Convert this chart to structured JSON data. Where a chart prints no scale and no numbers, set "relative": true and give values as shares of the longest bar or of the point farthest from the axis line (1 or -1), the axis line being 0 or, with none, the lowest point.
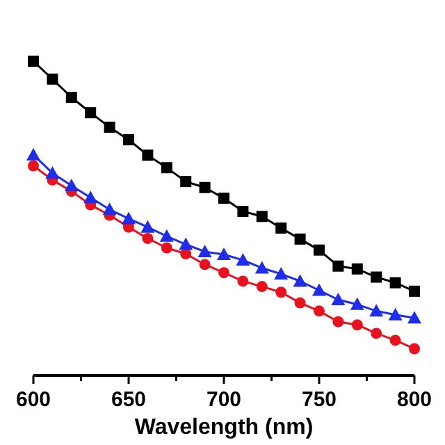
{
  "chart_data": {
    "type": "line",
    "xlabel": "Wavelength (nm)",
    "relative": true,
    "x": [
      600,
      610,
      620,
      630,
      640,
      650,
      660,
      670,
      680,
      690,
      700,
      710,
      720,
      730,
      740,
      750,
      760,
      770,
      780,
      790,
      800
    ],
    "xlim": [
      600,
      800
    ],
    "xticks": [
      600,
      {
        "value": 625,
        "label": null
      },
      650,
      {
        "value": 675,
        "label": null
      },
      700,
      {
        "value": 725,
        "label": null
      },
      750,
      {
        "value": 775,
        "label": null
      },
      800
    ],
    "grid": false,
    "line_style": "solid",
    "series": [
      {
        "color": "#000000",
        "marker": "square",
        "values": [
          1,
          0.943,
          0.885,
          0.836,
          0.79,
          0.75,
          0.701,
          0.661,
          0.617,
          0.598,
          0.564,
          0.522,
          0.506,
          0.469,
          0.434,
          0.399,
          0.348,
          0.339,
          0.313,
          0.295,
          0.268
        ]
      },
      {
        "color": "#1f2de8",
        "marker": "triangle",
        "values": [
          0.702,
          0.644,
          0.604,
          0.566,
          0.528,
          0.499,
          0.472,
          0.443,
          0.417,
          0.394,
          0.385,
          0.367,
          0.342,
          0.323,
          0.3,
          0.271,
          0.241,
          0.226,
          0.205,
          0.193,
          0.183
        ]
      },
      {
        "color": "#e8121e",
        "marker": "circle",
        "values": [
          0.667,
          0.622,
          0.586,
          0.543,
          0.51,
          0.472,
          0.436,
          0.406,
          0.387,
          0.353,
          0.327,
          0.3,
          0.283,
          0.265,
          0.231,
          0.205,
          0.171,
          0.161,
          0.134,
          0.112,
          0.085
        ]
      }
    ]
  }
}
